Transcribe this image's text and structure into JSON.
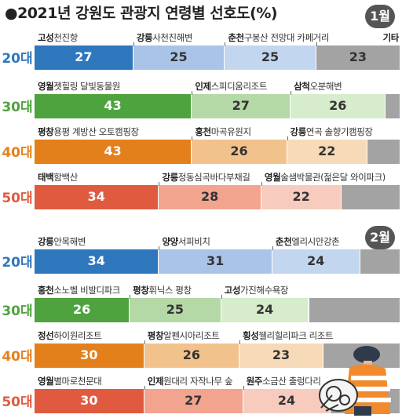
{
  "header": {
    "title": "●2021년 강원도 관광지 연령별 선호도(%)"
  },
  "colors": {
    "20대": [
      "#2e77bc",
      "#a9c4e6",
      "#c3d6ef",
      "#a3a3a3"
    ],
    "30대": [
      "#4ea33e",
      "#b5d9a6",
      "#d6ecca",
      "#a3a3a3"
    ],
    "40대": [
      "#e3801c",
      "#f2c28d",
      "#f7dab8",
      "#a3a3a3"
    ],
    "50대": [
      "#e05a40",
      "#f2a48f",
      "#f7ccbf",
      "#a3a3a3"
    ],
    "age_text": {
      "20대": "#2e77bc",
      "30대": "#4ea33e",
      "40대": "#e3801c",
      "50대": "#e05a40"
    }
  },
  "chart_data": [
    {
      "type": "bar",
      "month": "1월",
      "rows": [
        {
          "age": "20대",
          "segments": [
            {
              "region": "고성",
              "place": "천진항",
              "value": 27
            },
            {
              "region": "강릉",
              "place": "사천진해변",
              "value": 25
            },
            {
              "region": "춘천",
              "place": "구봉산 전망대 카페거리",
              "value": 25
            },
            {
              "region": "기타",
              "place": "",
              "value": 23
            }
          ]
        },
        {
          "age": "30대",
          "segments": [
            {
              "region": "영월",
              "place": "젯힐링 달빛동물원",
              "value": 43
            },
            {
              "region": "인제",
              "place": "스피디움리조트",
              "value": 27
            },
            {
              "region": "삼척",
              "place": "오분해변",
              "value": 26
            },
            {
              "region": "",
              "place": "",
              "value": 4
            }
          ]
        },
        {
          "age": "40대",
          "segments": [
            {
              "region": "평창",
              "place": "용평 계방산 오토캠핑장",
              "value": 43
            },
            {
              "region": "홍천",
              "place": "마곡유원지",
              "value": 26
            },
            {
              "region": "강릉",
              "place": "연곡 솔향기캠핑장",
              "value": 22
            },
            {
              "region": "",
              "place": "",
              "value": 9
            }
          ]
        },
        {
          "age": "50대",
          "segments": [
            {
              "region": "태백",
              "place": "함백산",
              "value": 34
            },
            {
              "region": "강릉",
              "place": "정동심곡바다부채길",
              "value": 28
            },
            {
              "region": "영월",
              "place": "술샘박물관(젊은달 와이파크)",
              "value": 22
            },
            {
              "region": "",
              "place": "",
              "value": 16
            }
          ]
        }
      ]
    },
    {
      "type": "bar",
      "month": "2월",
      "rows": [
        {
          "age": "20대",
          "segments": [
            {
              "region": "강릉",
              "place": "안목해변",
              "value": 34
            },
            {
              "region": "양양",
              "place": "서피비치",
              "value": 31
            },
            {
              "region": "춘천",
              "place": "엘리시안강촌",
              "value": 24
            },
            {
              "region": "",
              "place": "",
              "value": 11
            }
          ]
        },
        {
          "age": "30대",
          "segments": [
            {
              "region": "홍천",
              "place": "소노벨 비발디파크",
              "value": 26
            },
            {
              "region": "평창",
              "place": "휘닉스 평창",
              "value": 25
            },
            {
              "region": "고성",
              "place": "가진해수욕장",
              "value": 24
            },
            {
              "region": "",
              "place": "",
              "value": 25
            }
          ]
        },
        {
          "age": "40대",
          "segments": [
            {
              "region": "정선",
              "place": "하이원리조트",
              "value": 30
            },
            {
              "region": "평창",
              "place": "알펜시아리조트",
              "value": 26
            },
            {
              "region": "횡성",
              "place": "웰리힐리파크 리조트",
              "value": 23
            },
            {
              "region": "",
              "place": "",
              "value": 21
            }
          ]
        },
        {
          "age": "50대",
          "segments": [
            {
              "region": "영월",
              "place": "별마로천문대",
              "value": 30
            },
            {
              "region": "인제",
              "place": "원대리 자작나무 숲",
              "value": 27
            },
            {
              "region": "원주",
              "place": "소금산 출렁다리",
              "value": 24
            },
            {
              "region": "",
              "place": "",
              "value": 19
            }
          ]
        }
      ]
    }
  ]
}
